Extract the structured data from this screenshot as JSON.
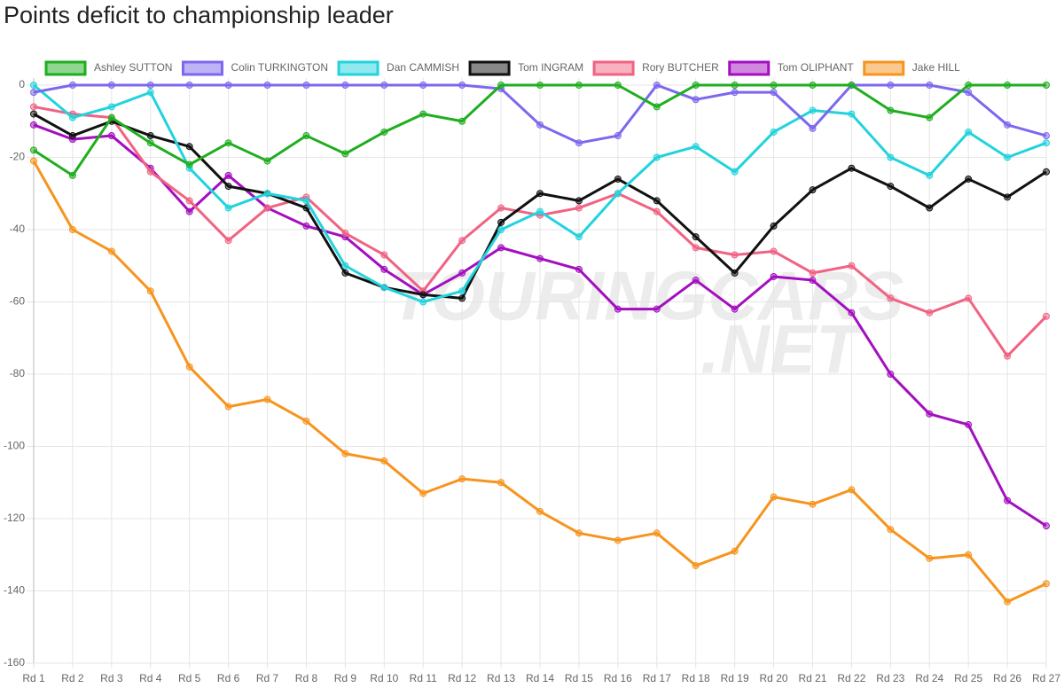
{
  "chart_data": {
    "type": "line",
    "title": "Points deficit to championship leader",
    "watermark": [
      "TOURINGCARS",
      ".NET"
    ],
    "categories": [
      "Rd 1",
      "Rd 2",
      "Rd 3",
      "Rd 4",
      "Rd 5",
      "Rd 6",
      "Rd 7",
      "Rd 8",
      "Rd 9",
      "Rd 10",
      "Rd 11",
      "Rd 12",
      "Rd 13",
      "Rd 14",
      "Rd 15",
      "Rd 16",
      "Rd 17",
      "Rd 18",
      "Rd 19",
      "Rd 20",
      "Rd 21",
      "Rd 22",
      "Rd 23",
      "Rd 24",
      "Rd 25",
      "Rd 26",
      "Rd 27"
    ],
    "ylim": [
      -160,
      0
    ],
    "yticks": [
      -160,
      -140,
      -120,
      -100,
      -80,
      -60,
      -40,
      -20,
      0
    ],
    "grid": true,
    "legend": "top",
    "series": [
      {
        "name": "Ashley SUTTON",
        "color": "#1fae1f",
        "values": [
          -18,
          -25,
          -9,
          -16,
          -22,
          -16,
          -21,
          -14,
          -19,
          -13,
          -8,
          -10,
          0,
          0,
          0,
          0,
          -6,
          0,
          0,
          0,
          0,
          0,
          -7,
          -9,
          0,
          0,
          0
        ]
      },
      {
        "name": "Colin TURKINGTON",
        "color": "#7b68ee",
        "values": [
          -2,
          0,
          0,
          0,
          0,
          0,
          0,
          0,
          0,
          0,
          0,
          0,
          -1,
          -11,
          -16,
          -14,
          0,
          -4,
          -2,
          -2,
          -12,
          0,
          0,
          0,
          -2,
          -11,
          -14
        ]
      },
      {
        "name": "Dan CAMMISH",
        "color": "#22d3dd",
        "values": [
          0,
          -9,
          -6,
          -2,
          -23,
          -34,
          -30,
          -32,
          -50,
          -56,
          -60,
          -57,
          -40,
          -35,
          -42,
          -30,
          -20,
          -17,
          -24,
          -13,
          -7,
          -8,
          -20,
          -25,
          -13,
          -20,
          -16
        ]
      },
      {
        "name": "Tom INGRAM",
        "color": "#111111",
        "values": [
          -8,
          -14,
          -10,
          -14,
          -17,
          -28,
          -30,
          -34,
          -52,
          -56,
          -58,
          -59,
          -38,
          -30,
          -32,
          -26,
          -32,
          -42,
          -52,
          -39,
          -29,
          -23,
          -28,
          -34,
          -26,
          -31,
          -24
        ]
      },
      {
        "name": "Rory BUTCHER",
        "color": "#f06383",
        "values": [
          -6,
          -8,
          -9,
          -24,
          -32,
          -43,
          -34,
          -31,
          -41,
          -47,
          -57,
          -43,
          -34,
          -36,
          -34,
          -30,
          -35,
          -45,
          -47,
          -46,
          -52,
          -50,
          -59,
          -63,
          -59,
          -75,
          -64
        ]
      },
      {
        "name": "Tom OLIPHANT",
        "color": "#a30fbf",
        "values": [
          -11,
          -15,
          -14,
          -23,
          -35,
          -25,
          -34,
          -39,
          -42,
          -51,
          -58,
          -52,
          -45,
          -48,
          -51,
          -62,
          -62,
          -54,
          -62,
          -53,
          -54,
          -63,
          -80,
          -91,
          -94,
          -115,
          -122
        ]
      },
      {
        "name": "Jake HILL",
        "color": "#f7941d",
        "values": [
          -21,
          -40,
          -46,
          -57,
          -78,
          -89,
          -87,
          -93,
          -102,
          -104,
          -113,
          -109,
          -110,
          -118,
          -124,
          -126,
          -124,
          -133,
          -129,
          -114,
          -116,
          -112,
          -123,
          -131,
          -130,
          -143,
          -138
        ]
      }
    ]
  }
}
